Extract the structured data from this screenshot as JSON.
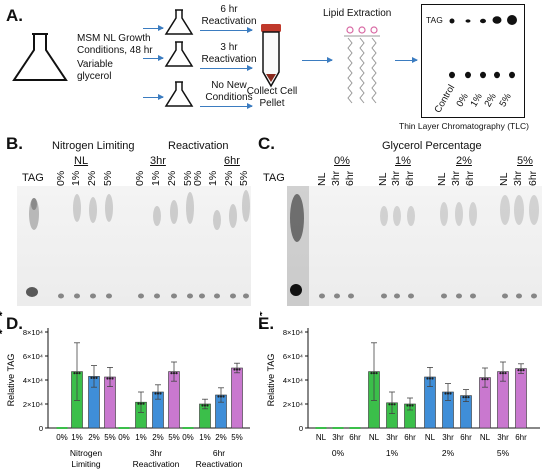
{
  "panelA": {
    "letter": "A.",
    "growth_line1": "MSM NL Growth",
    "growth_line2": "Conditions, 48 hr",
    "growth_line3": "Variable",
    "growth_line4": "glycerol",
    "branch1_line1": "6 hr",
    "branch1_line2": "Reactivation",
    "branch2_line1": "3 hr",
    "branch2_line2": "Reactivation",
    "branch3_line1": "No New",
    "branch3_line2": "Conditions",
    "collect_line1": "Collect Cell",
    "collect_line2": "Pellet",
    "lipid_extraction": "Lipid Extraction",
    "tlc_tag": "TAG",
    "tlc_lanes": [
      "Control",
      "0%",
      "1%",
      "2%",
      "5%"
    ],
    "tlc_caption": "Thin Layer Chromatography (TLC)"
  },
  "panelB": {
    "letter": "B.",
    "header_left": "Nitrogen Limiting",
    "header_right": "Reactivation",
    "group_nl": "NL",
    "group_3hr": "3hr",
    "group_6hr": "6hr",
    "tag": "TAG",
    "lanes": [
      "0%",
      "1%",
      "2%",
      "5%",
      "0%",
      "1%",
      "2%",
      "5%",
      "0%",
      "1%",
      "2%",
      "5%"
    ]
  },
  "panelC": {
    "letter": "C.",
    "header": "Glycerol Percentage",
    "groups": [
      "0%",
      "1%",
      "2%",
      "5%"
    ],
    "tag": "TAG",
    "lanes": [
      "NL",
      "3hr",
      "6hr",
      "NL",
      "3hr",
      "6hr",
      "NL",
      "3hr",
      "6hr",
      "NL",
      "3hr",
      "6hr"
    ]
  },
  "panelD": {
    "letter": "D.",
    "ylabel": "Relative TAG",
    "yticks": [
      "0",
      "2×10⁴",
      "4×10⁴",
      "6×10⁴",
      "8×10⁴"
    ],
    "xticks": [
      "0%",
      "1%",
      "2%",
      "5%",
      "0%",
      "1%",
      "2%",
      "5%",
      "0%",
      "1%",
      "2%",
      "5%"
    ],
    "group_labels": [
      [
        "Nitrogen",
        "Limiting"
      ],
      [
        "3hr",
        "Reactivation"
      ],
      [
        "6hr",
        "Reactivation"
      ]
    ],
    "sig": [
      "*",
      "*",
      "*",
      "*"
    ]
  },
  "panelE": {
    "letter": "E.",
    "ylabel": "Relative TAG",
    "yticks": [
      "0",
      "2×10⁴",
      "4×10⁴",
      "6×10⁴",
      "8×10⁴"
    ],
    "xticks": [
      "NL",
      "3hr",
      "6hr",
      "NL",
      "3hr",
      "6hr",
      "NL",
      "3hr",
      "6hr",
      "NL",
      "3hr",
      "6hr"
    ],
    "group_labels": [
      "0%",
      "1%",
      "2%",
      "5%"
    ],
    "sig": [
      "*",
      "*",
      "*",
      "*"
    ]
  },
  "colors": {
    "green": "#3bbf4a",
    "blue": "#3f8ed8",
    "pink": "#c978cf",
    "arrow": "#3b7cc0"
  },
  "chart_data": [
    {
      "type": "bar",
      "panel": "D",
      "ylabel": "Relative TAG",
      "ylim": [
        0,
        80000
      ],
      "categories": [
        "NL 0%",
        "NL 1%",
        "NL 2%",
        "NL 5%",
        "3hr 0%",
        "3hr 1%",
        "3hr 2%",
        "3hr 5%",
        "6hr 0%",
        "6hr 1%",
        "6hr 2%",
        "6hr 5%"
      ],
      "values": [
        0,
        47000,
        43000,
        42500,
        0,
        21500,
        30000,
        47000,
        0,
        20000,
        27500,
        50000
      ],
      "errors": [
        0,
        24000,
        9000,
        8000,
        0,
        8500,
        6000,
        8000,
        0,
        4000,
        6000,
        4000
      ],
      "colors": [
        "green",
        "green",
        "blue",
        "pink",
        "green",
        "green",
        "blue",
        "pink",
        "green",
        "green",
        "blue",
        "pink"
      ]
    },
    {
      "type": "bar",
      "panel": "E",
      "ylabel": "Relative TAG",
      "ylim": [
        0,
        80000
      ],
      "categories": [
        "0% NL",
        "0% 3hr",
        "0% 6hr",
        "1% NL",
        "1% 3hr",
        "1% 6hr",
        "2% NL",
        "2% 3hr",
        "2% 6hr",
        "5% NL",
        "5% 3hr",
        "5% 6hr"
      ],
      "values": [
        0,
        0,
        0,
        47000,
        21000,
        20000,
        42500,
        30000,
        27000,
        42000,
        47000,
        49500
      ],
      "errors": [
        0,
        0,
        0,
        24000,
        9000,
        5000,
        8000,
        7000,
        5000,
        8000,
        8000,
        4000
      ],
      "colors": [
        "green",
        "green",
        "green",
        "green",
        "green",
        "green",
        "blue",
        "blue",
        "blue",
        "pink",
        "pink",
        "pink"
      ]
    }
  ]
}
